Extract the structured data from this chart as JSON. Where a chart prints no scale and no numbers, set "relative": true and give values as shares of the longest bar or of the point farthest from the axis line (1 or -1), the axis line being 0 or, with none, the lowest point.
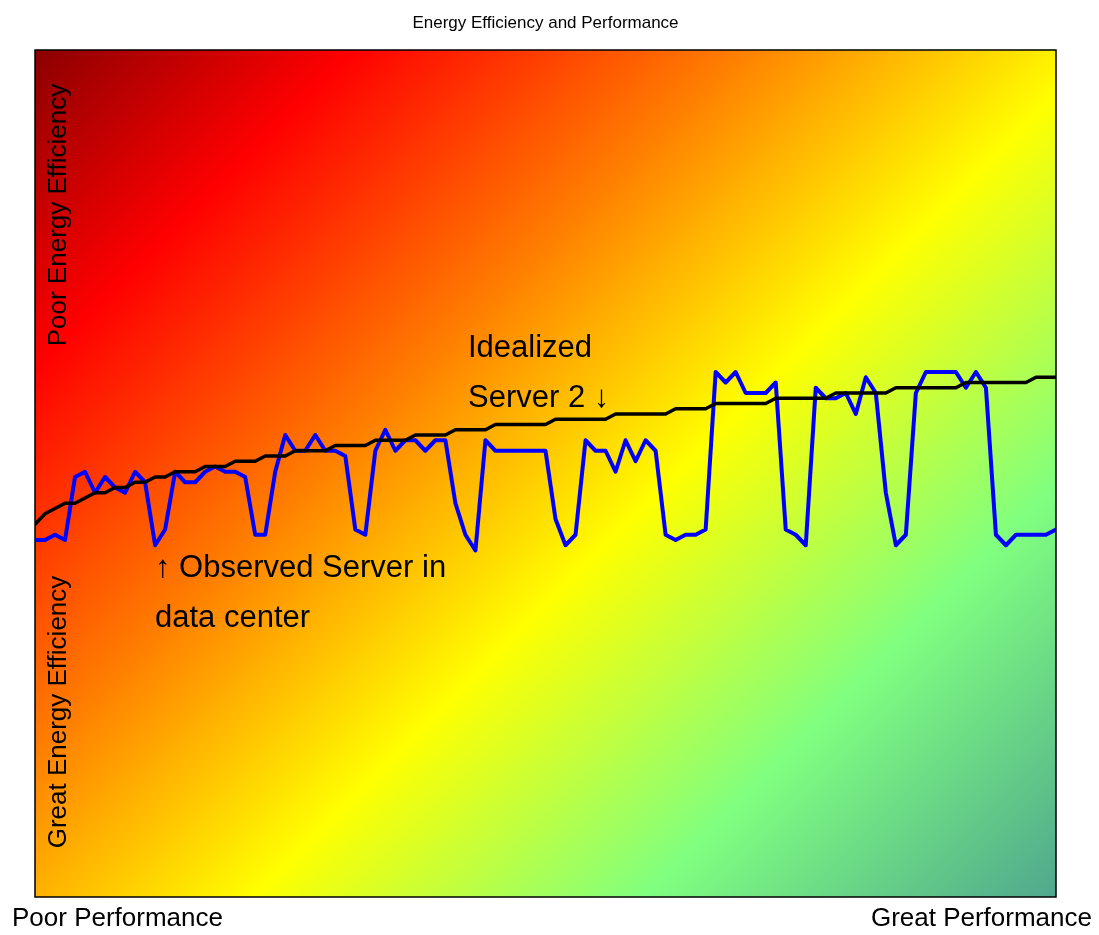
{
  "chart_data": {
    "type": "line",
    "title": "Energy Efficiency and Performance",
    "relative": true,
    "categories": [
      null,
      null,
      null,
      null,
      null,
      null,
      null,
      null,
      null,
      null,
      null,
      null,
      null,
      null,
      null,
      null,
      null,
      null,
      null,
      null,
      null,
      null,
      null,
      null,
      null,
      null,
      null,
      null,
      null,
      null,
      null,
      null,
      null,
      null,
      null,
      null,
      null,
      null,
      null,
      null,
      null,
      null,
      null,
      null,
      null,
      null,
      null,
      null,
      null,
      null,
      null,
      null,
      null,
      null,
      null,
      null,
      null,
      null,
      null,
      null,
      null,
      null,
      null,
      null,
      null,
      null,
      null,
      null,
      null,
      null,
      null,
      null,
      null,
      null,
      null,
      null,
      null,
      null,
      null,
      null,
      null,
      null,
      null,
      null,
      null,
      null,
      null,
      null,
      null,
      null,
      null,
      null,
      null,
      null,
      null,
      null,
      null,
      null,
      null,
      null,
      null,
      null,
      null
    ],
    "series": [
      {
        "color": "#0000ff",
        "values": [
          0.68,
          0.68,
          0.69,
          0.68,
          0.8,
          0.81,
          0.77,
          0.8,
          0.78,
          0.77,
          0.81,
          0.79,
          0.67,
          0.7,
          0.81,
          0.79,
          0.79,
          0.81,
          0.82,
          0.81,
          0.81,
          0.8,
          0.69,
          0.69,
          0.81,
          0.88,
          0.85,
          0.85,
          0.88,
          0.85,
          0.85,
          0.84,
          0.7,
          0.69,
          0.85,
          0.89,
          0.85,
          0.87,
          0.87,
          0.85,
          0.87,
          0.87,
          0.75,
          0.69,
          0.66,
          0.87,
          0.85,
          0.85,
          0.85,
          0.85,
          0.85,
          0.85,
          0.72,
          0.67,
          0.69,
          0.87,
          0.85,
          0.85,
          0.81,
          0.87,
          0.83,
          0.87,
          0.85,
          0.69,
          0.68,
          0.69,
          0.69,
          0.7,
          1.0,
          0.98,
          1.0,
          0.96,
          0.96,
          0.96,
          0.98,
          0.7,
          0.69,
          0.67,
          0.97,
          0.95,
          0.95,
          0.96,
          0.92,
          0.99,
          0.96,
          0.77,
          0.67,
          0.69,
          0.96,
          1.0,
          1.0,
          1.0,
          1.0,
          0.97,
          1.0,
          0.97,
          0.69,
          0.67,
          0.69,
          0.69,
          0.69,
          0.69,
          0.7
        ]
      },
      {
        "color": "#000000",
        "values": [
          0.71,
          0.73,
          0.74,
          0.75,
          0.75,
          0.76,
          0.77,
          0.77,
          0.78,
          0.78,
          0.79,
          0.79,
          0.8,
          0.8,
          0.81,
          0.81,
          0.81,
          0.82,
          0.82,
          0.82,
          0.83,
          0.83,
          0.83,
          0.84,
          0.84,
          0.84,
          0.85,
          0.85,
          0.85,
          0.85,
          0.86,
          0.86,
          0.86,
          0.86,
          0.87,
          0.87,
          0.87,
          0.87,
          0.88,
          0.88,
          0.88,
          0.88,
          0.89,
          0.89,
          0.89,
          0.89,
          0.9,
          0.9,
          0.9,
          0.9,
          0.9,
          0.9,
          0.91,
          0.91,
          0.91,
          0.91,
          0.91,
          0.91,
          0.92,
          0.92,
          0.92,
          0.92,
          0.92,
          0.92,
          0.93,
          0.93,
          0.93,
          0.93,
          0.94,
          0.94,
          0.94,
          0.94,
          0.94,
          0.94,
          0.95,
          0.95,
          0.95,
          0.95,
          0.95,
          0.95,
          0.96,
          0.96,
          0.96,
          0.96,
          0.96,
          0.96,
          0.97,
          0.97,
          0.97,
          0.97,
          0.97,
          0.97,
          0.97,
          0.98,
          0.98,
          0.98,
          0.98,
          0.98,
          0.98,
          0.98,
          0.99,
          0.99,
          0.99
        ]
      }
    ],
    "annotations": [
      "Poor Performance",
      "Great Performance",
      "Poor Energy Efficiency",
      "Great Energy Efficiency",
      "Idealized Server 2 ↓",
      "↑ Observed Server in data center"
    ]
  }
}
